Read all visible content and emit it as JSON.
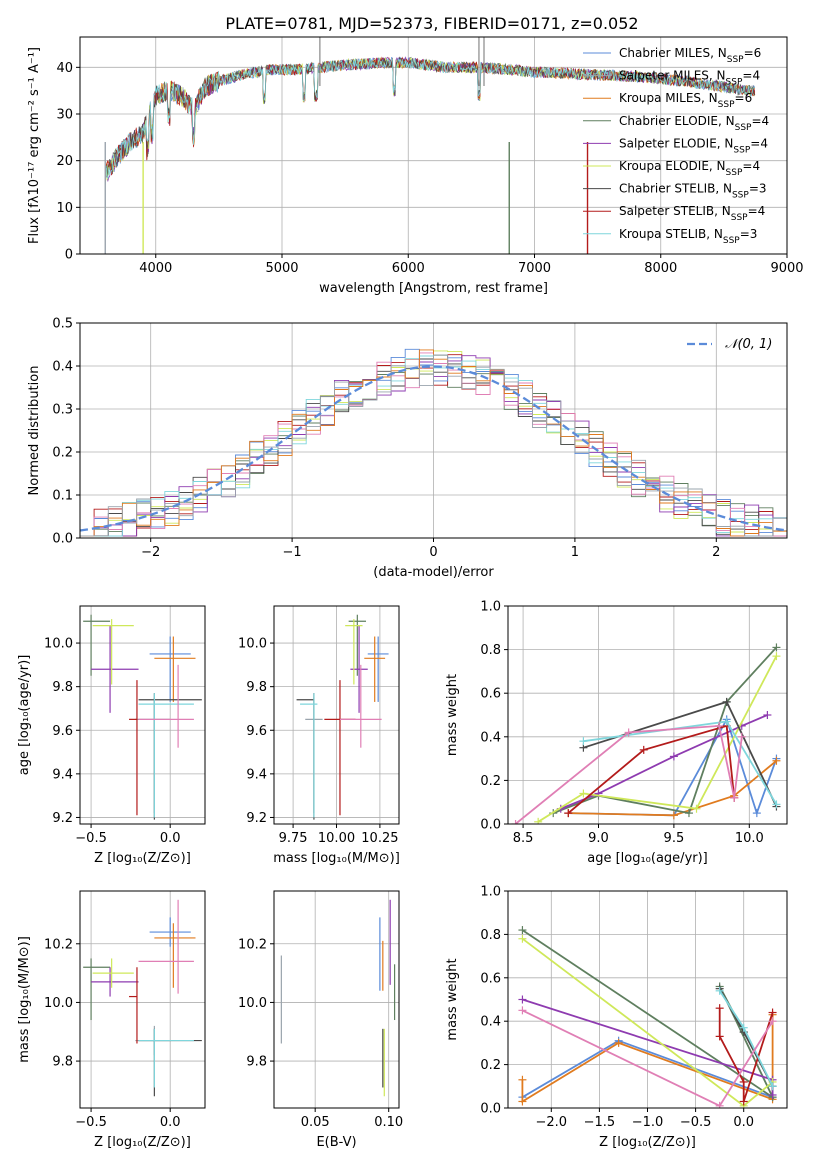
{
  "figure": {
    "title": "PLATE=0781, MJD=52373, FIBERID=0171, z=0.052"
  },
  "colors": {
    "chabrier_miles": "#5b8bd9",
    "salpeter_miles": "#9aa4ad",
    "kroupa_miles": "#e07b1f",
    "chabrier_elodie": "#5f7f5f",
    "salpeter_elodie": "#8e3bb0",
    "kroupa_elodie": "#cfe85a",
    "chabrier_stelib": "#4a4a4a",
    "salpeter_stelib": "#b31b1b",
    "kroupa_stelib": "#7fd6dc",
    "pink": "#e07fb5",
    "normal": "#5b8bd9",
    "grid": "#b0b0b0"
  },
  "chart_data": [
    {
      "type": "line",
      "id": "spectrum",
      "xlabel": "wavelength [Angstrom, rest frame]",
      "ylabel": "Flux [fλ10⁻¹⁷ erg cm⁻² s⁻¹ A⁻¹]",
      "xlim": [
        3400,
        9000
      ],
      "ylim": [
        0,
        46.5
      ],
      "xticks": [
        "4000",
        "5000",
        "6000",
        "7000",
        "8000",
        "9000"
      ],
      "yticks": [
        "0",
        "10",
        "20",
        "30",
        "40"
      ],
      "continuum": {
        "x": [
          3600,
          3700,
          3800,
          3900,
          3950,
          4000,
          4100,
          4200,
          4300,
          4400,
          4500,
          4700,
          4900,
          5100,
          5300,
          5500,
          5800,
          6000,
          6300,
          6600,
          7000,
          7400,
          7800,
          8200,
          8700
        ],
        "y": [
          17,
          21,
          24,
          26,
          30,
          34,
          35,
          34,
          31,
          36,
          37,
          38.5,
          39.5,
          39.5,
          40,
          40.5,
          41,
          41,
          40,
          40,
          39,
          38.5,
          38,
          37,
          35
        ]
      },
      "legend": [
        {
          "name": "Chabrier MILES, N",
          "sub": "SSP",
          "suffix": "=6"
        },
        {
          "name": "Salpeter MILES, N",
          "sub": "SSP",
          "suffix": "=4"
        },
        {
          "name": "Kroupa MILES, N",
          "sub": "SSP",
          "suffix": "=6"
        },
        {
          "name": "Chabrier ELODIE, N",
          "sub": "SSP",
          "suffix": "=4"
        },
        {
          "name": "Salpeter ELODIE, N",
          "sub": "SSP",
          "suffix": "=4"
        },
        {
          "name": "Kroupa ELODIE, N",
          "sub": "SSP",
          "suffix": "=4"
        },
        {
          "name": "Chabrier STELIB, N",
          "sub": "SSP",
          "suffix": "=3"
        },
        {
          "name": "Salpeter STELIB, N",
          "sub": "SSP",
          "suffix": "=4"
        },
        {
          "name": "Kroupa STELIB, N",
          "sub": "SSP",
          "suffix": "=3"
        }
      ]
    },
    {
      "type": "histogram",
      "id": "residuals",
      "xlabel": "(data-model)/error",
      "ylabel": "Normed distribution",
      "xlim": [
        -2.5,
        2.5
      ],
      "ylim": [
        0,
        0.5
      ],
      "xticks": [
        "−2",
        "−1",
        "0",
        "1",
        "2"
      ],
      "yticks": [
        "0.0",
        "0.1",
        "0.2",
        "0.3",
        "0.4",
        "0.5"
      ],
      "legend": "𝒩(0, 1)",
      "bin_width": 0.1
    },
    {
      "type": "errorbar",
      "id": "age_vs_Z",
      "xlabel": "Z [log₁₀(Z/Z⊙)]",
      "ylabel": "age  [log₁₀(age/yr)]",
      "xlim": [
        -0.57,
        0.22
      ],
      "ylim": [
        9.17,
        10.17
      ],
      "xticks": [
        "−0.5",
        "0.0"
      ],
      "yticks": [
        "9.2",
        "9.4",
        "9.6",
        "9.8",
        "10.0"
      ],
      "points": [
        {
          "x": 0.0,
          "y": 9.95,
          "xerr": [
            0.13,
            0.13
          ],
          "yerr": [
            0.22,
            0.08
          ]
        },
        {
          "x": -0.1,
          "y": 9.65,
          "xerr": [
            0.12,
            0.1
          ],
          "yerr": [
            0.43,
            0.1
          ]
        },
        {
          "x": 0.02,
          "y": 9.93,
          "xerr": [
            0.12,
            0.14
          ],
          "yerr": [
            0.2,
            0.1
          ]
        },
        {
          "x": -0.5,
          "y": 10.1,
          "xerr": [
            0.05,
            0.12
          ],
          "yerr": [
            0.25,
            0.03
          ]
        },
        {
          "x": -0.38,
          "y": 9.88,
          "xerr": [
            0.12,
            0.18
          ],
          "yerr": [
            0.2,
            0.2
          ]
        },
        {
          "x": -0.37,
          "y": 10.08,
          "xerr": [
            0.12,
            0.14
          ],
          "yerr": [
            0.27,
            0.03
          ]
        },
        {
          "x": -0.1,
          "y": 9.74,
          "xerr": [
            0.1,
            0.3
          ],
          "yerr": [
            0.55,
            0.03
          ]
        },
        {
          "x": -0.21,
          "y": 9.65,
          "xerr": [
            0.05,
            0.0
          ],
          "yerr": [
            0.44,
            0.18
          ]
        },
        {
          "x": -0.1,
          "y": 9.72,
          "xerr": [
            0.1,
            0.25
          ],
          "yerr": [
            0.52,
            0.05
          ]
        },
        {
          "x": 0.05,
          "y": 9.65,
          "xerr": [
            0.25,
            0.1
          ],
          "yerr": [
            0.13,
            0.25
          ]
        }
      ]
    },
    {
      "type": "errorbar",
      "id": "age_vs_mass",
      "xlabel": "mass [log₁₀(M/M⊙)]",
      "ylabel": "",
      "xlim": [
        9.64,
        10.36
      ],
      "ylim": [
        9.17,
        10.17
      ],
      "xticks": [
        "9.75",
        "10.00",
        "10.25"
      ],
      "yticks": [
        "9.2",
        "9.4",
        "9.6",
        "9.8",
        "10.0"
      ],
      "points": [
        {
          "x": 10.24,
          "y": 9.95,
          "xerr": [
            0.06,
            0.06
          ],
          "yerr": [
            0.22,
            0.08
          ]
        },
        {
          "x": 9.87,
          "y": 9.65,
          "xerr": [
            0.05,
            0.05
          ],
          "yerr": [
            0.43,
            0.1
          ]
        },
        {
          "x": 10.22,
          "y": 9.93,
          "xerr": [
            0.06,
            0.06
          ],
          "yerr": [
            0.2,
            0.1
          ]
        },
        {
          "x": 10.12,
          "y": 10.1,
          "xerr": [
            0.05,
            0.05
          ],
          "yerr": [
            0.25,
            0.03
          ]
        },
        {
          "x": 10.13,
          "y": 9.88,
          "xerr": [
            0.05,
            0.05
          ],
          "yerr": [
            0.2,
            0.2
          ]
        },
        {
          "x": 10.1,
          "y": 10.08,
          "xerr": [
            0.05,
            0.05
          ],
          "yerr": [
            0.27,
            0.03
          ]
        },
        {
          "x": 9.87,
          "y": 9.74,
          "xerr": [
            0.1,
            0.0
          ],
          "yerr": [
            0.55,
            0.03
          ]
        },
        {
          "x": 10.02,
          "y": 9.65,
          "xerr": [
            0.09,
            0.09
          ],
          "yerr": [
            0.44,
            0.18
          ]
        },
        {
          "x": 9.87,
          "y": 9.72,
          "xerr": [
            0.08,
            0.02
          ],
          "yerr": [
            0.52,
            0.05
          ]
        },
        {
          "x": 10.14,
          "y": 9.65,
          "xerr": [
            0.12,
            0.12
          ],
          "yerr": [
            0.13,
            0.25
          ]
        }
      ]
    },
    {
      "type": "line",
      "id": "mass_weight_vs_age",
      "xlabel": "age  [log₁₀(age/yr)]",
      "ylabel": "mass weight",
      "xlim": [
        8.4,
        10.25
      ],
      "ylim": [
        0,
        1.0
      ],
      "xticks": [
        "8.5",
        "9.0",
        "9.5",
        "10.0"
      ],
      "yticks": [
        "0.0",
        "0.2",
        "0.4",
        "0.6",
        "0.8",
        "1.0"
      ],
      "series": [
        {
          "x": [
            8.8,
            9.5,
            9.85,
            10.05,
            10.18
          ],
          "y": [
            0.05,
            0.04,
            0.48,
            0.05,
            0.3
          ]
        },
        {
          "x": [
            8.8,
            9.5,
            9.9,
            10.18
          ],
          "y": [
            0.05,
            0.04,
            0.13,
            0.29
          ]
        },
        {
          "x": [
            8.7,
            9.0,
            9.6,
            9.85,
            10.18
          ],
          "y": [
            0.05,
            0.13,
            0.05,
            0.56,
            0.81
          ]
        },
        {
          "x": [
            8.75,
            9.0,
            9.5,
            9.95,
            10.12
          ],
          "y": [
            0.07,
            0.14,
            0.31,
            0.45,
            0.5
          ]
        },
        {
          "x": [
            8.6,
            8.9,
            9.65,
            10.18
          ],
          "y": [
            0.01,
            0.14,
            0.07,
            0.77
          ]
        },
        {
          "x": [
            8.9,
            9.85,
            10.18
          ],
          "y": [
            0.35,
            0.56,
            0.08
          ]
        },
        {
          "x": [
            8.8,
            9.3,
            9.85,
            9.9
          ],
          "y": [
            0.05,
            0.34,
            0.45,
            0.12
          ]
        },
        {
          "x": [
            8.9,
            9.85,
            10.18
          ],
          "y": [
            0.38,
            0.47,
            0.09
          ]
        },
        {
          "x": [
            8.45,
            9.2,
            9.8,
            9.9,
            9.95
          ],
          "y": [
            0.0,
            0.42,
            0.45,
            0.12,
            0.4
          ]
        }
      ]
    },
    {
      "type": "errorbar",
      "id": "mass_vs_Z",
      "xlabel": "Z [log₁₀(Z/Z⊙)]",
      "ylabel": "mass [log₁₀(M/M⊙)]",
      "xlim": [
        -0.57,
        0.22
      ],
      "ylim": [
        9.64,
        10.38
      ],
      "xticks": [
        "−0.5",
        "0.0"
      ],
      "yticks": [
        "9.8",
        "10.0",
        "10.2"
      ],
      "points": [
        {
          "x": 0.0,
          "y": 10.24,
          "xerr": [
            0.13,
            0.13
          ],
          "yerr": [
            0.05,
            0.05
          ]
        },
        {
          "x": -0.1,
          "y": 9.87,
          "xerr": [
            0.12,
            0.1
          ],
          "yerr": [
            0.05,
            0.05
          ]
        },
        {
          "x": 0.02,
          "y": 10.22,
          "xerr": [
            0.12,
            0.14
          ],
          "yerr": [
            0.17,
            0.05
          ]
        },
        {
          "x": -0.5,
          "y": 10.12,
          "xerr": [
            0.05,
            0.12
          ],
          "yerr": [
            0.18,
            0.03
          ]
        },
        {
          "x": -0.38,
          "y": 10.07,
          "xerr": [
            0.12,
            0.18
          ],
          "yerr": [
            0.05,
            0.05
          ]
        },
        {
          "x": -0.37,
          "y": 10.1,
          "xerr": [
            0.12,
            0.14
          ],
          "yerr": [
            0.05,
            0.05
          ]
        },
        {
          "x": -0.1,
          "y": 9.87,
          "xerr": [
            0.1,
            0.3
          ],
          "yerr": [
            0.19,
            0.04
          ]
        },
        {
          "x": -0.21,
          "y": 10.02,
          "xerr": [
            0.05,
            0.0
          ],
          "yerr": [
            0.16,
            0.1
          ]
        },
        {
          "x": -0.1,
          "y": 9.87,
          "xerr": [
            0.1,
            0.25
          ],
          "yerr": [
            0.16,
            0.04
          ]
        },
        {
          "x": 0.05,
          "y": 10.14,
          "xerr": [
            0.25,
            0.1
          ],
          "yerr": [
            0.11,
            0.21
          ]
        }
      ]
    },
    {
      "type": "errorbar",
      "id": "mass_vs_ebv",
      "xlabel": "E(B-V)",
      "ylabel": "",
      "xlim": [
        0.022,
        0.107
      ],
      "ylim": [
        9.64,
        10.38
      ],
      "xticks": [
        "0.05",
        "0.10"
      ],
      "yticks": [
        "9.8",
        "10.0",
        "10.2"
      ],
      "points": [
        {
          "x": 0.094,
          "y": 10.2,
          "xerr": [
            0,
            0
          ],
          "yerr": [
            0.16,
            0.09
          ]
        },
        {
          "x": 0.027,
          "y": 10.02,
          "xerr": [
            0,
            0
          ],
          "yerr": [
            0.16,
            0.14
          ]
        },
        {
          "x": 0.096,
          "y": 10.14,
          "xerr": [
            0,
            0
          ],
          "yerr": [
            0.1,
            0.07
          ]
        },
        {
          "x": 0.104,
          "y": 10.03,
          "xerr": [
            0,
            0
          ],
          "yerr": [
            0.09,
            0.1
          ]
        },
        {
          "x": 0.101,
          "y": 10.16,
          "xerr": [
            0,
            0
          ],
          "yerr": [
            0.1,
            0.19
          ]
        },
        {
          "x": 0.097,
          "y": 9.87,
          "xerr": [
            0,
            0
          ],
          "yerr": [
            0.19,
            0.04
          ]
        },
        {
          "x": 0.096,
          "y": 9.87,
          "xerr": [
            0,
            0
          ],
          "yerr": [
            0.16,
            0.04
          ]
        }
      ]
    },
    {
      "type": "line",
      "id": "mass_weight_vs_Z",
      "xlabel": "Z [log₁₀(Z/Z⊙)]",
      "ylabel": "mass weight",
      "xlim": [
        -2.45,
        0.45
      ],
      "ylim": [
        0,
        1.0
      ],
      "xticks": [
        "−2.0",
        "−1.5",
        "−1.0",
        "−0.5",
        "0.0"
      ],
      "yticks": [
        "0.0",
        "0.2",
        "0.4",
        "0.6",
        "0.8",
        "1.0"
      ],
      "series": [
        {
          "x": [
            -2.3,
            -1.3,
            0.3,
            0.3
          ],
          "y": [
            0.05,
            0.31,
            0.05,
            0.1
          ]
        },
        {
          "x": [
            -2.3,
            -2.3,
            -1.3,
            0.3,
            0.3
          ],
          "y": [
            0.13,
            0.03,
            0.3,
            0.04,
            0.43
          ]
        },
        {
          "x": [
            -2.3,
            0.3,
            -0.25,
            0.0
          ],
          "y": [
            0.82,
            0.05,
            0.56,
            0.35
          ]
        },
        {
          "x": [
            -2.3,
            0.3,
            0.3
          ],
          "y": [
            0.5,
            0.13,
            0.06
          ]
        },
        {
          "x": [
            -2.3,
            0.0,
            0.3
          ],
          "y": [
            0.78,
            0.01,
            0.12
          ]
        },
        {
          "x": [
            -0.25,
            0.0,
            0.3
          ],
          "y": [
            0.55,
            0.35,
            0.1
          ]
        },
        {
          "x": [
            -0.25,
            -0.25,
            0.0,
            0.0,
            0.3
          ],
          "y": [
            0.46,
            0.33,
            0.12,
            0.03,
            0.44
          ]
        },
        {
          "x": [
            -0.25,
            0.0,
            0.3
          ],
          "y": [
            0.54,
            0.37,
            0.1
          ]
        },
        {
          "x": [
            -2.3,
            -0.25,
            0.3
          ],
          "y": [
            0.45,
            0.01,
            0.4
          ]
        }
      ]
    }
  ]
}
